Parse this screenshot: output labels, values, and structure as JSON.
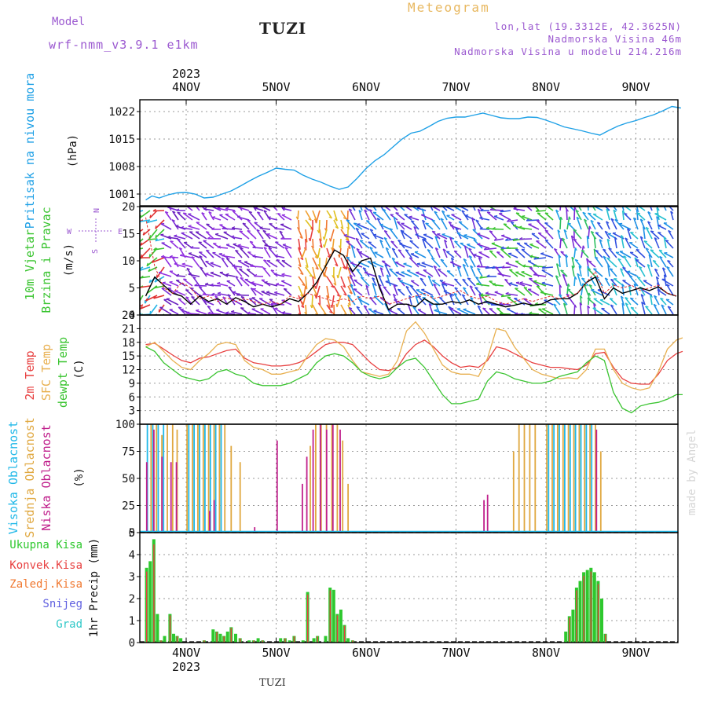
{
  "header": {
    "model_label": "Model",
    "model_name": "wrf-nmm_v3.9.1 e1km",
    "station": "TUZI",
    "title": "Meteogram",
    "coords": "lon,lat (19.3312E, 42.3625N)",
    "altitude": "Nadmorska Visina 46m",
    "model_altitude": "Nadmorska Visina u modelu 214.216m"
  },
  "footer": {
    "station": "TUZI",
    "credit": "made by Angel"
  },
  "time_axis": {
    "year": "2023",
    "days": [
      "4NOV",
      "5NOV",
      "6NOV",
      "7NOV",
      "8NOV",
      "9NOV"
    ]
  },
  "chart_data": [
    {
      "type": "line",
      "panel": "pressure",
      "ylabel": [
        "Pritisak na nivou mora",
        "(hPa)"
      ],
      "yticks": [
        1001,
        1008,
        1015,
        1022
      ],
      "ylim": [
        998,
        1025
      ],
      "x_days": [
        3.55,
        3.62,
        3.7,
        3.8,
        3.9,
        4.0,
        4.1,
        4.2,
        4.3,
        4.4,
        4.5,
        4.6,
        4.7,
        4.8,
        4.9,
        5.0,
        5.1,
        5.2,
        5.3,
        5.4,
        5.5,
        5.6,
        5.7,
        5.8,
        5.9,
        6.0,
        6.1,
        6.2,
        6.3,
        6.4,
        6.5,
        6.6,
        6.7,
        6.8,
        6.9,
        7.0,
        7.1,
        7.2,
        7.3,
        7.4,
        7.5,
        7.6,
        7.7,
        7.8,
        7.9,
        8.0,
        8.1,
        8.2,
        8.3,
        8.4,
        8.5,
        8.6,
        8.7,
        8.8,
        8.9,
        9.0,
        9.1,
        9.2,
        9.3,
        9.4,
        9.5
      ],
      "series": [
        {
          "name": "",
          "color": "#1ea0e6",
          "values": [
            999.5,
            1000.5,
            1000.0,
            1000.8,
            1001.3,
            1001.4,
            1001.0,
            1000.0,
            1000.2,
            1001.0,
            1001.8,
            1003.0,
            1004.3,
            1005.5,
            1006.5,
            1007.6,
            1007.3,
            1007.1,
            1005.8,
            1004.8,
            1004.0,
            1003.0,
            1002.2,
            1002.8,
            1005.0,
            1007.5,
            1009.5,
            1011.0,
            1013.0,
            1015.0,
            1016.5,
            1017.0,
            1018.2,
            1019.5,
            1020.3,
            1020.6,
            1020.6,
            1021.1,
            1021.6,
            1021.0,
            1020.4,
            1020.2,
            1020.2,
            1020.6,
            1020.5,
            1019.8,
            1019.0,
            1018.1,
            1017.6,
            1017.1,
            1016.5,
            1016.0,
            1017.2,
            1018.3,
            1019.1,
            1019.7,
            1020.5,
            1021.2,
            1022.2,
            1023.3,
            1022.9
          ]
        }
      ]
    },
    {
      "type": "line",
      "panel": "wind",
      "ylabel": [
        "10m Vjetar",
        "Brzina i Pravac",
        "(m/s)"
      ],
      "compass": [
        "N",
        "W",
        "E",
        "S"
      ],
      "yticks": [
        0,
        5,
        10,
        15,
        20
      ],
      "ylim": [
        0,
        20
      ],
      "x_days": [
        3.55,
        3.65,
        3.75,
        3.85,
        3.95,
        4.05,
        4.15,
        4.25,
        4.35,
        4.45,
        4.55,
        4.65,
        4.75,
        4.85,
        4.95,
        5.05,
        5.15,
        5.25,
        5.35,
        5.45,
        5.55,
        5.65,
        5.75,
        5.85,
        5.95,
        6.05,
        6.15,
        6.25,
        6.35,
        6.45,
        6.55,
        6.65,
        6.75,
        6.85,
        6.95,
        7.05,
        7.15,
        7.25,
        7.35,
        7.45,
        7.55,
        7.65,
        7.75,
        7.85,
        7.95,
        8.05,
        8.15,
        8.25,
        8.35,
        8.45,
        8.55,
        8.65,
        8.75,
        8.85,
        8.95,
        9.05,
        9.15,
        9.25,
        9.35,
        9.45
      ],
      "series": [
        {
          "name": "",
          "color": "#000000",
          "values": [
            3.5,
            7.0,
            5.5,
            4.0,
            3.5,
            2.0,
            3.5,
            2.5,
            3.0,
            2.0,
            3.2,
            2.5,
            1.5,
            2.0,
            1.5,
            2.0,
            3.0,
            2.5,
            4.0,
            6.0,
            9.0,
            12.0,
            11.0,
            8.0,
            10.0,
            10.5,
            5.0,
            1.0,
            2.0,
            2.0,
            1.5,
            3.0,
            2.0,
            2.0,
            2.5,
            2.2,
            2.8,
            2.0,
            2.5,
            2.0,
            1.5,
            1.8,
            2.2,
            1.8,
            2.0,
            2.8,
            3.0,
            3.0,
            4.0,
            6.0,
            7.0,
            3.0,
            5.0,
            4.0,
            4.5,
            5.0,
            4.5,
            5.2,
            4.0,
            3.5
          ]
        },
        {
          "name": "",
          "color": "#e03030",
          "values": [
            18.0,
            9.0,
            5.0,
            4.0,
            6.0,
            5.0,
            3.0,
            3.5,
            2.5,
            3.2,
            2.5,
            3.0,
            2.5,
            2.0,
            2.5,
            2.0,
            3.5,
            3.0,
            4.0,
            3.5,
            3.0,
            2.5,
            3.0,
            2.5,
            3.5,
            3.0,
            3.5,
            2.0,
            2.5,
            3.0,
            3.5,
            4.0,
            3.0,
            3.5,
            4.0,
            4.5,
            3.5,
            3.0,
            3.5,
            2.5,
            2.0,
            2.5,
            3.0,
            2.5,
            3.0,
            3.5,
            3.0,
            3.5,
            4.0,
            6.0,
            8.0,
            4.0,
            5.5,
            5.0,
            5.5,
            4.5,
            5.0,
            5.5,
            4.0,
            3.5
          ]
        }
      ]
    },
    {
      "type": "line",
      "panel": "temperature",
      "ylabel": [
        "2m Temp",
        "SFC Temp",
        "dewpt Temp",
        "(C)"
      ],
      "yticks": [
        3,
        6,
        9,
        12,
        15,
        18,
        21,
        24
      ],
      "ylim": [
        0,
        24
      ],
      "x_days": [
        3.55,
        3.65,
        3.75,
        3.85,
        3.95,
        4.05,
        4.15,
        4.25,
        4.35,
        4.45,
        4.55,
        4.65,
        4.75,
        4.85,
        4.95,
        5.05,
        5.15,
        5.25,
        5.35,
        5.45,
        5.55,
        5.65,
        5.75,
        5.85,
        5.95,
        6.05,
        6.15,
        6.25,
        6.35,
        6.45,
        6.55,
        6.65,
        6.75,
        6.85,
        6.95,
        7.05,
        7.15,
        7.25,
        7.35,
        7.45,
        7.55,
        7.65,
        7.75,
        7.85,
        7.95,
        8.05,
        8.15,
        8.25,
        8.35,
        8.45,
        8.55,
        8.65,
        8.75,
        8.85,
        8.95,
        9.05,
        9.15,
        9.25,
        9.35,
        9.45,
        9.52
      ],
      "series": [
        {
          "name": "2m Temp",
          "color": "#e84040",
          "values": [
            17.5,
            17.8,
            16.5,
            15.2,
            14.0,
            13.5,
            14.5,
            14.8,
            15.5,
            16.2,
            16.5,
            14.5,
            13.5,
            13.2,
            12.8,
            12.8,
            13.0,
            13.5,
            14.5,
            16.0,
            17.5,
            18.0,
            18.0,
            17.5,
            15.5,
            13.5,
            12.0,
            11.8,
            12.5,
            15.5,
            17.5,
            18.5,
            17.0,
            15.0,
            13.5,
            12.5,
            12.8,
            12.5,
            14.0,
            17.0,
            16.5,
            15.5,
            14.5,
            13.5,
            13.0,
            12.5,
            12.5,
            12.2,
            12.0,
            13.0,
            15.5,
            15.8,
            12.5,
            10.0,
            9.0,
            8.8,
            8.8,
            11.0,
            14.0,
            15.5,
            16.0
          ]
        },
        {
          "name": "SFC Temp",
          "color": "#e8b050",
          "values": [
            17.0,
            18.0,
            16.0,
            14.0,
            12.5,
            12.0,
            14.0,
            15.5,
            17.5,
            18.0,
            17.5,
            14.0,
            12.5,
            12.0,
            11.0,
            11.0,
            11.5,
            12.0,
            15.0,
            17.5,
            18.8,
            18.5,
            17.0,
            14.0,
            11.5,
            11.0,
            10.5,
            11.0,
            14.0,
            20.5,
            22.5,
            20.0,
            16.5,
            13.0,
            11.5,
            11.0,
            11.0,
            10.5,
            14.5,
            21.0,
            20.5,
            17.0,
            14.5,
            12.0,
            11.0,
            10.5,
            10.0,
            10.2,
            10.0,
            12.0,
            16.5,
            16.5,
            12.0,
            9.0,
            8.0,
            7.5,
            8.0,
            11.5,
            16.5,
            18.5,
            19.0
          ]
        },
        {
          "name": "dewpt Temp",
          "color": "#3ac430",
          "values": [
            17.0,
            16.0,
            13.5,
            12.0,
            10.5,
            10.0,
            9.5,
            10.0,
            11.5,
            12.0,
            11.0,
            10.5,
            9.0,
            8.5,
            8.5,
            8.5,
            9.0,
            10.0,
            11.0,
            13.5,
            15.0,
            15.5,
            15.0,
            13.5,
            11.5,
            10.5,
            10.0,
            10.5,
            12.5,
            14.0,
            14.5,
            12.5,
            9.5,
            6.5,
            4.5,
            4.5,
            5.0,
            5.5,
            9.5,
            11.5,
            11.0,
            10.0,
            9.5,
            9.0,
            9.0,
            9.5,
            10.5,
            11.0,
            11.5,
            13.5,
            15.0,
            14.0,
            7.0,
            3.5,
            2.5,
            4.0,
            4.5,
            4.8,
            5.5,
            6.5,
            6.5
          ]
        }
      ]
    },
    {
      "type": "bar",
      "panel": "cloud",
      "ylabel": [
        "Visoka Oblacnost",
        "Srednja Oblacnost",
        "Niska Oblacnost",
        "(%)"
      ],
      "yticks": [
        0,
        25,
        50,
        75,
        100
      ],
      "ylim": [
        0,
        100
      ],
      "series": [
        {
          "name": "Visoka Oblacnost",
          "color": "#20b8e8",
          "x_days": [
            3.58,
            3.64,
            3.7,
            3.76,
            4.04,
            4.1,
            4.16,
            4.22,
            4.28,
            4.34,
            4.4,
            8.04,
            8.1,
            8.16,
            8.22,
            8.28,
            8.34,
            8.4,
            8.46,
            8.52
          ],
          "values": [
            100,
            100,
            100,
            100,
            100,
            100,
            100,
            100,
            100,
            100,
            100,
            100,
            100,
            100,
            100,
            100,
            100,
            100,
            100,
            100
          ]
        },
        {
          "name": "Srednja Oblacnost",
          "color": "#e0a840",
          "x_days": [
            3.61,
            3.67,
            3.73,
            3.79,
            3.85,
            3.9,
            4.01,
            4.07,
            4.13,
            4.19,
            4.25,
            4.31,
            4.37,
            4.43,
            4.5,
            4.6,
            5.38,
            5.44,
            5.5,
            5.56,
            5.62,
            5.68,
            5.74,
            5.8,
            7.64,
            7.7,
            7.76,
            7.82,
            7.88,
            8.01,
            8.07,
            8.13,
            8.19,
            8.25,
            8.31,
            8.37,
            8.43,
            8.49,
            8.55,
            8.61
          ],
          "values": [
            100,
            100,
            90,
            100,
            100,
            95,
            100,
            100,
            100,
            100,
            100,
            100,
            100,
            100,
            80,
            65,
            80,
            100,
            100,
            100,
            100,
            100,
            85,
            45,
            75,
            100,
            100,
            100,
            100,
            100,
            100,
            100,
            100,
            100,
            100,
            100,
            100,
            100,
            100,
            75
          ]
        },
        {
          "name": "Niska Oblacnost",
          "color": "#c0208c",
          "x_days": [
            3.55,
            3.63,
            3.72,
            3.82,
            3.88,
            4.25,
            4.3,
            4.75,
            5.0,
            5.28,
            5.33,
            5.4,
            5.48,
            5.55,
            5.62,
            5.7,
            7.3,
            7.34,
            8.55
          ],
          "values": [
            65,
            95,
            70,
            65,
            65,
            20,
            30,
            5,
            85,
            45,
            70,
            95,
            100,
            95,
            100,
            95,
            30,
            35,
            95
          ]
        }
      ]
    },
    {
      "type": "bar",
      "panel": "precipitation",
      "ylabel": [
        "Ukupna Kisa",
        "Konvek.Kisa",
        "Zaledj.Kisa",
        "Snijeg",
        "Grad",
        "1hr Precip (mm)"
      ],
      "legend_colors": [
        "#2ec82e",
        "#e84040",
        "#f07830",
        "#6060e0",
        "#30c8c8"
      ],
      "yticks": [
        0,
        1,
        2,
        3,
        4,
        5
      ],
      "ylim": [
        0,
        5
      ],
      "x_days": [
        3.56,
        3.6,
        3.64,
        3.68,
        3.72,
        3.76,
        3.82,
        3.86,
        3.9,
        3.94,
        4.2,
        4.3,
        4.34,
        4.38,
        4.42,
        4.46,
        4.5,
        4.55,
        4.6,
        4.7,
        4.75,
        4.8,
        4.85,
        5.05,
        5.1,
        5.15,
        5.2,
        5.3,
        5.35,
        5.42,
        5.46,
        5.55,
        5.6,
        5.64,
        5.68,
        5.72,
        5.76,
        5.8,
        5.85,
        8.22,
        8.26,
        8.3,
        8.34,
        8.38,
        8.42,
        8.46,
        8.5,
        8.54,
        8.58,
        8.62,
        8.66
      ],
      "values": [
        3.4,
        3.7,
        4.7,
        1.3,
        0.1,
        0.3,
        1.3,
        0.4,
        0.3,
        0.2,
        0.1,
        0.6,
        0.5,
        0.4,
        0.3,
        0.5,
        0.7,
        0.4,
        0.2,
        0.1,
        0.1,
        0.2,
        0.1,
        0.2,
        0.2,
        0.1,
        0.3,
        0.1,
        2.3,
        0.2,
        0.3,
        0.3,
        2.5,
        2.4,
        1.3,
        1.5,
        0.8,
        0.2,
        0.1,
        0.5,
        1.2,
        1.5,
        2.5,
        2.8,
        3.2,
        3.3,
        3.4,
        3.2,
        2.8,
        2.0,
        0.4
      ]
    }
  ]
}
